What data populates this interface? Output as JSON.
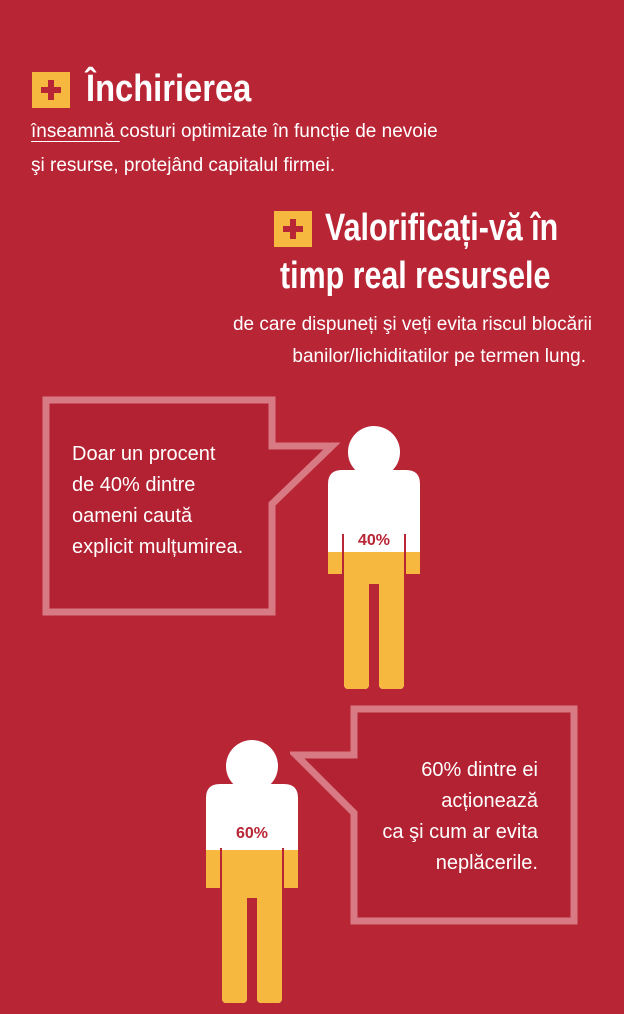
{
  "section1": {
    "heading": "Închirierea",
    "line1_underlined": "înseamnă ",
    "line1_rest": "costuri optimizate în funcție de nevoie",
    "line2": "şi resurse, protejând capitalul firmei."
  },
  "section2": {
    "heading_line1": "Valorificați-vă în",
    "heading_line2": "timp real resursele",
    "line1": "de care dispuneți şi veți evita riscul blocării",
    "line2": "banilor/lichiditatilor pe termen lung."
  },
  "bubble1": {
    "lines": [
      "Doar un procent",
      "de 40% dintre",
      "oameni caută",
      "explicit mulțumirea."
    ],
    "figure_label": "40%",
    "figure_fill": 0.4
  },
  "bubble2": {
    "lines": [
      "60% dintre ei",
      "acționează",
      "ca şi cum ar evita",
      "neplăcerile."
    ],
    "figure_label": "60%",
    "figure_fill": 0.6
  },
  "colors": {
    "background": "#b82535",
    "accent": "#f7b840",
    "plus_sign": "#b82535",
    "bubble_stroke": "#d87a84",
    "bubble_fill": "#b32232",
    "text": "#ffffff"
  }
}
